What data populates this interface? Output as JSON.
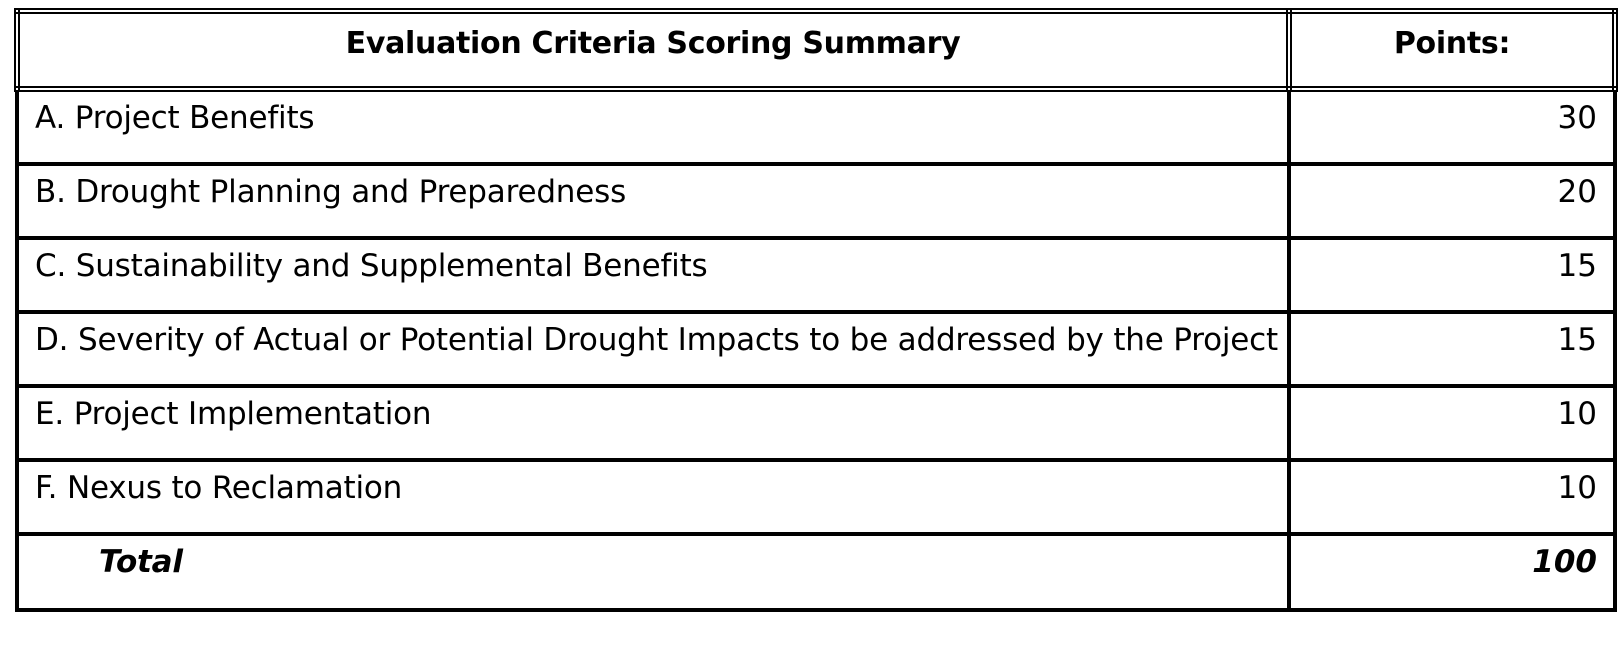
{
  "table": {
    "header": {
      "criteria": "Evaluation Criteria Scoring Summary",
      "points": "Points:"
    },
    "rows": [
      {
        "label": "A. Project Benefits",
        "points": "30"
      },
      {
        "label": "B. Drought Planning and Preparedness",
        "points": "20"
      },
      {
        "label": "C. Sustainability and Supplemental Benefits",
        "points": "15"
      },
      {
        "label": "D. Severity of Actual or Potential Drought Impacts to be addressed by the Project",
        "points": "15"
      },
      {
        "label": "E. Project Implementation",
        "points": "10"
      },
      {
        "label": "F. Nexus to Reclamation",
        "points": "10"
      }
    ],
    "total": {
      "label": "Total",
      "points": "100"
    }
  }
}
